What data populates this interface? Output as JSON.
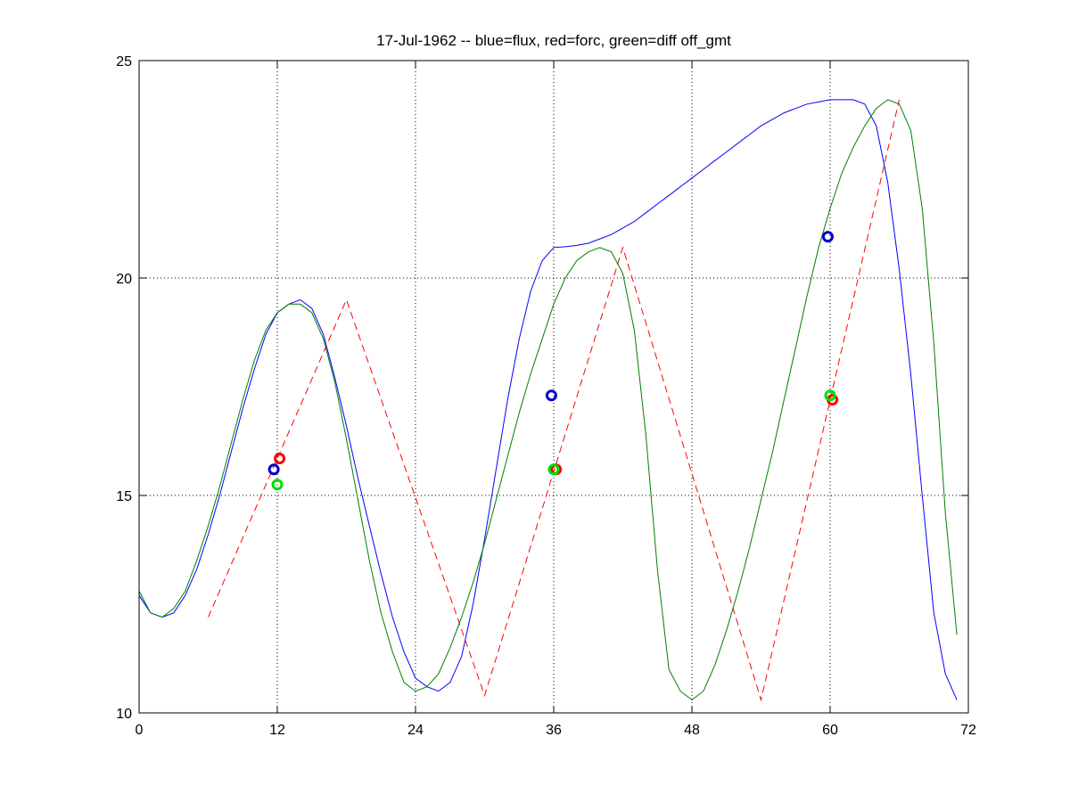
{
  "chart_data": {
    "type": "line",
    "title": "17-Jul-1962 -- blue=flux, red=forc, green=diff off_gmt",
    "xlabel": "",
    "ylabel": "",
    "xlim": [
      0,
      72
    ],
    "ylim": [
      10,
      25
    ],
    "x_ticks": [
      0,
      12,
      24,
      36,
      48,
      60,
      72
    ],
    "y_ticks": [
      10,
      15,
      20,
      25
    ],
    "x_tick_labels": [
      "0",
      "12",
      "24",
      "36",
      "48",
      "60",
      "72"
    ],
    "y_tick_labels": [
      "10",
      "15",
      "20",
      "25"
    ],
    "grid": true,
    "grid_style": "dotted",
    "legend": "none",
    "series": [
      {
        "color": "#0000ff",
        "style": "solid",
        "x": [
          0,
          1,
          2,
          3,
          4,
          5,
          6,
          7,
          8,
          9,
          10,
          11,
          12,
          13,
          14,
          15,
          16,
          17,
          18,
          19,
          20,
          21,
          22,
          23,
          24,
          25,
          26,
          27,
          28,
          29,
          30,
          31,
          32,
          33,
          34,
          35,
          36,
          37,
          38,
          39,
          40,
          41,
          42,
          43,
          44,
          45,
          46,
          47,
          48,
          49,
          50,
          51,
          52,
          53,
          54,
          55,
          56,
          57,
          58,
          59,
          60,
          61,
          62,
          63,
          64,
          65,
          66,
          67,
          68,
          69,
          70,
          71
        ],
        "y": [
          12.7,
          12.3,
          12.2,
          12.3,
          12.7,
          13.3,
          14.1,
          15.0,
          16.0,
          17.0,
          17.9,
          18.7,
          19.2,
          19.4,
          19.5,
          19.3,
          18.7,
          17.7,
          16.6,
          15.4,
          14.3,
          13.2,
          12.2,
          11.4,
          10.8,
          10.6,
          10.5,
          10.7,
          11.3,
          12.5,
          14.0,
          15.6,
          17.2,
          18.6,
          19.7,
          20.4,
          20.7,
          20.72,
          20.75,
          20.8,
          20.9,
          21.0,
          21.15,
          21.3,
          21.5,
          21.7,
          21.9,
          22.1,
          22.3,
          22.5,
          22.7,
          22.9,
          23.1,
          23.3,
          23.5,
          23.65,
          23.8,
          23.9,
          24.0,
          24.05,
          24.1,
          24.1,
          24.1,
          24.0,
          23.5,
          22.2,
          20.2,
          17.8,
          15.0,
          12.3,
          10.9,
          10.3
        ]
      },
      {
        "color": "#ff0000",
        "style": "dashed",
        "x": [
          6,
          18,
          30,
          42,
          54,
          66
        ],
        "y": [
          12.2,
          19.5,
          10.4,
          20.7,
          10.3,
          24.1
        ]
      },
      {
        "color": "#007f00",
        "style": "solid",
        "x": [
          0,
          1,
          2,
          3,
          4,
          5,
          6,
          7,
          8,
          9,
          10,
          11,
          12,
          13,
          14,
          15,
          16,
          17,
          18,
          19,
          20,
          21,
          22,
          23,
          24,
          25,
          26,
          27,
          28,
          29,
          30,
          31,
          32,
          33,
          34,
          35,
          36,
          37,
          38,
          39,
          40,
          41,
          42,
          43,
          44,
          45,
          46,
          47,
          48,
          49,
          50,
          51,
          52,
          53,
          54,
          55,
          56,
          57,
          58,
          59,
          60,
          61,
          62,
          63,
          64,
          65,
          66,
          67,
          68,
          69,
          70,
          71
        ],
        "y": [
          12.8,
          12.3,
          12.2,
          12.4,
          12.8,
          13.5,
          14.3,
          15.2,
          16.2,
          17.2,
          18.1,
          18.8,
          19.2,
          19.4,
          19.4,
          19.2,
          18.6,
          17.6,
          16.3,
          14.9,
          13.5,
          12.3,
          11.4,
          10.7,
          10.5,
          10.6,
          10.9,
          11.5,
          12.2,
          13.0,
          13.9,
          14.9,
          15.9,
          16.9,
          17.8,
          18.6,
          19.4,
          20.0,
          20.4,
          20.6,
          20.7,
          20.6,
          20.1,
          18.8,
          16.4,
          13.3,
          11.0,
          10.5,
          10.3,
          10.5,
          11.1,
          11.9,
          12.8,
          13.8,
          14.9,
          16.0,
          17.2,
          18.4,
          19.6,
          20.7,
          21.6,
          22.4,
          23.0,
          23.5,
          23.9,
          24.1,
          24.0,
          23.4,
          21.6,
          18.5,
          14.6,
          11.8
        ]
      }
    ],
    "markers": [
      {
        "color": "#0000cc",
        "x": 11.7,
        "y": 15.6
      },
      {
        "color": "#ff0000",
        "x": 12.2,
        "y": 15.85
      },
      {
        "color": "#00dd00",
        "x": 12.0,
        "y": 15.25
      },
      {
        "color": "#0000cc",
        "x": 35.8,
        "y": 17.3
      },
      {
        "color": "#ff0000",
        "x": 36.2,
        "y": 15.6
      },
      {
        "color": "#00dd00",
        "x": 36.0,
        "y": 15.6
      },
      {
        "color": "#0000cc",
        "x": 59.8,
        "y": 20.95
      },
      {
        "color": "#ff0000",
        "x": 60.2,
        "y": 17.2
      },
      {
        "color": "#00dd00",
        "x": 60.0,
        "y": 17.3
      }
    ]
  }
}
